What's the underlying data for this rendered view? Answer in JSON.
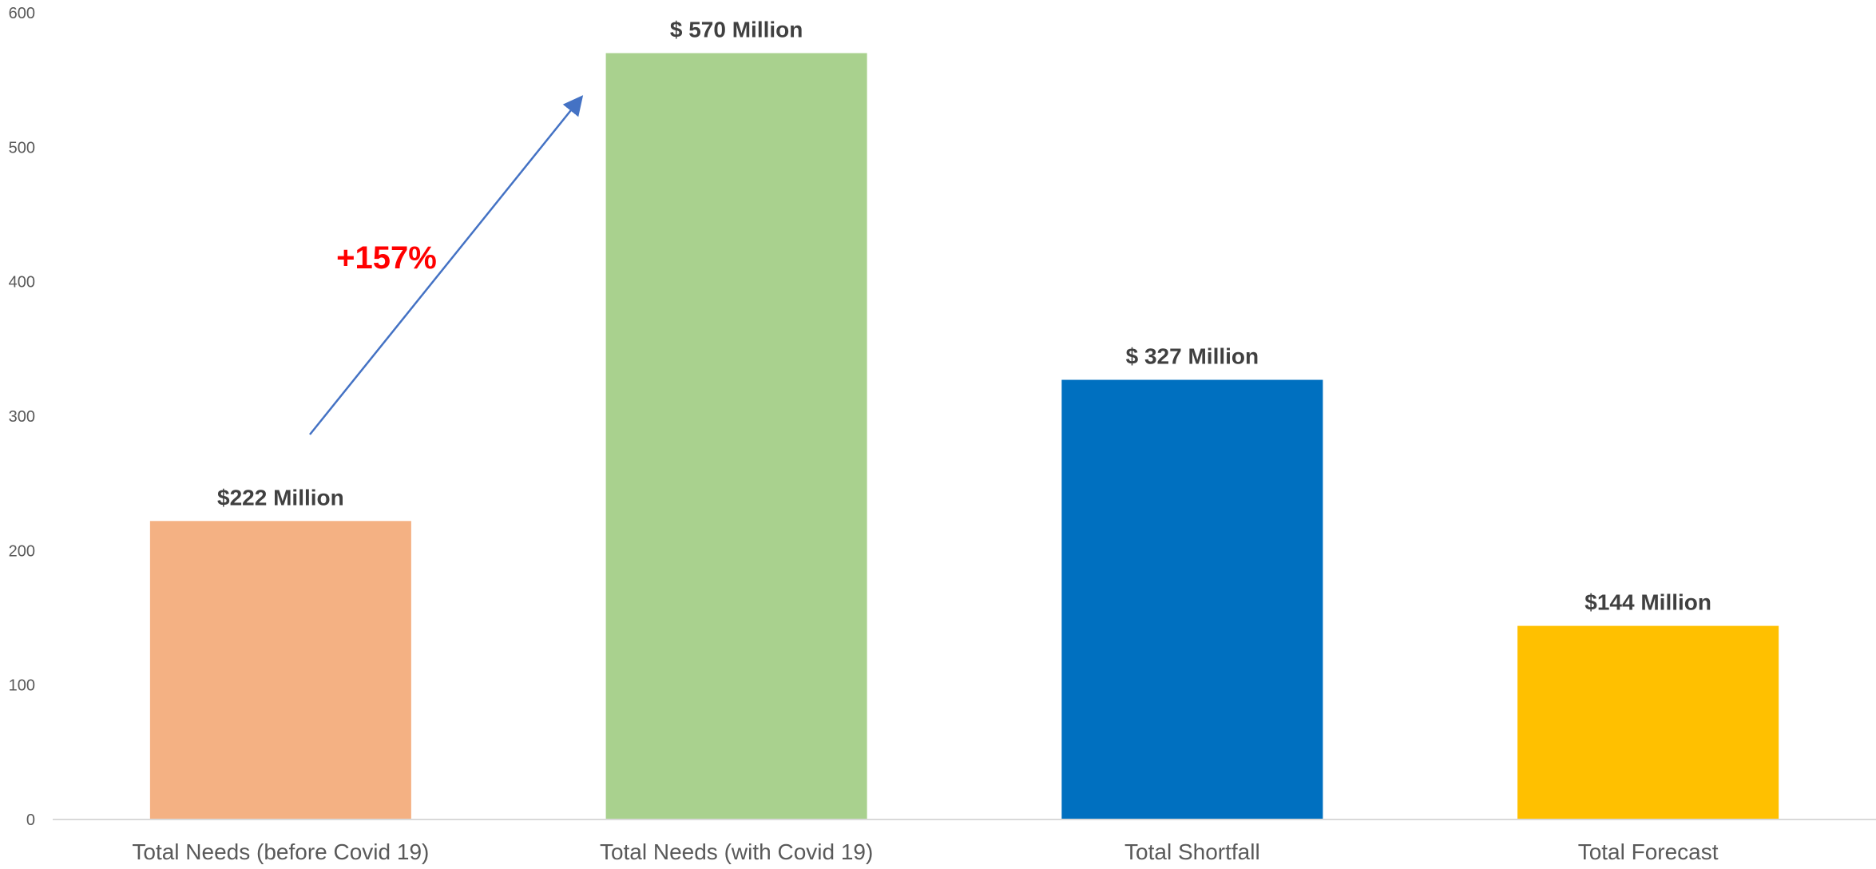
{
  "chart_data": {
    "type": "bar",
    "categories": [
      "Total Needs (before Covid 19)",
      "Total Needs (with Covid 19)",
      "Total Shortfall",
      "Total Forecast"
    ],
    "values": [
      222,
      570,
      327,
      144
    ],
    "data_labels": [
      "$222 Million",
      "$ 570 Million",
      "$ 327 Million",
      "$144 Million"
    ],
    "colors": [
      "#f4b183",
      "#a9d18e",
      "#0070c0",
      "#ffc000"
    ],
    "ylim": [
      0,
      600
    ],
    "yticks": [
      "0",
      "100",
      "200",
      "300",
      "400",
      "500",
      "600"
    ],
    "grid": false,
    "legend": "none",
    "annotation": {
      "text": "+157%",
      "color": "#ff0000",
      "arrow_color": "#4472c4"
    }
  }
}
